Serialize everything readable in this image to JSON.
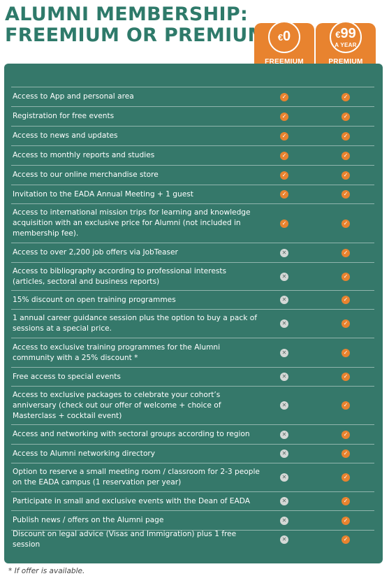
{
  "title": {
    "line1": "ALUMNI MEMBERSHIP:",
    "line2": "FREEMIUM OR PREMIUM"
  },
  "plans": {
    "freemium": {
      "currency": "€",
      "amount": "0",
      "period": "",
      "name": "FREEMIUM"
    },
    "premium": {
      "currency": "€",
      "amount": "99",
      "period": "A YEAR",
      "name": "PREMIUM"
    }
  },
  "colors": {
    "brand_green": "#2e7a6a",
    "table_green": "#35786a",
    "accent_orange": "#e8832f",
    "unavailable_grey": "#d4d8d6"
  },
  "icons": {
    "included": "check-icon",
    "not_included": "cross-icon"
  },
  "marks": {
    "yes": "✓",
    "no": "✕"
  },
  "features": [
    {
      "label": "Access to App and personal area",
      "freemium": true,
      "premium": true
    },
    {
      "label": "Registration for free events",
      "freemium": true,
      "premium": true
    },
    {
      "label": "Access to news and updates",
      "freemium": true,
      "premium": true
    },
    {
      "label": "Access to monthly reports and studies",
      "freemium": true,
      "premium": true
    },
    {
      "label": "Access to our online merchandise store",
      "freemium": true,
      "premium": true
    },
    {
      "label": "Invitation to the EADA Annual Meeting + 1 guest",
      "freemium": true,
      "premium": true
    },
    {
      "label": "Access to international mission trips for learning and knowledge acquisition with an exclusive price for Alumni (not included in membership fee).",
      "freemium": true,
      "premium": true
    },
    {
      "label": "Access to over 2,200 job offers via JobTeaser",
      "freemium": false,
      "premium": true
    },
    {
      "label": "Access to bibliography according to professional interests (articles, sectoral and business reports)",
      "freemium": false,
      "premium": true
    },
    {
      "label": "15% discount on open training programmes",
      "freemium": false,
      "premium": true
    },
    {
      "label": "1 annual career guidance session plus the option to buy a pack of sessions at a special price.",
      "freemium": false,
      "premium": true
    },
    {
      "label": "Access to exclusive training programmes for the Alumni community with a 25% discount *",
      "freemium": false,
      "premium": true
    },
    {
      "label": "Free access to special events",
      "freemium": false,
      "premium": true
    },
    {
      "label": "Access to exclusive packages to celebrate your cohort’s anniversary (check out our offer of welcome + choice of Masterclass + cocktail event)",
      "freemium": false,
      "premium": true
    },
    {
      "label": "Access and networking with sectoral groups according to region",
      "freemium": false,
      "premium": true
    },
    {
      "label": "Access to Alumni networking directory",
      "freemium": false,
      "premium": true
    },
    {
      "label": "Option to reserve a small meeting room / classroom for 2-3 people on the EADA campus (1 reservation per year)",
      "freemium": false,
      "premium": true
    },
    {
      "label": "Participate in small and exclusive events with the Dean of EADA",
      "freemium": false,
      "premium": true
    },
    {
      "label": "Publish news / offers on the Alumni page",
      "freemium": false,
      "premium": true
    },
    {
      "label": "Discount on legal advice (Visas and Immigration) plus 1 free session",
      "freemium": false,
      "premium": true
    }
  ],
  "footnote": "* If offer is available."
}
